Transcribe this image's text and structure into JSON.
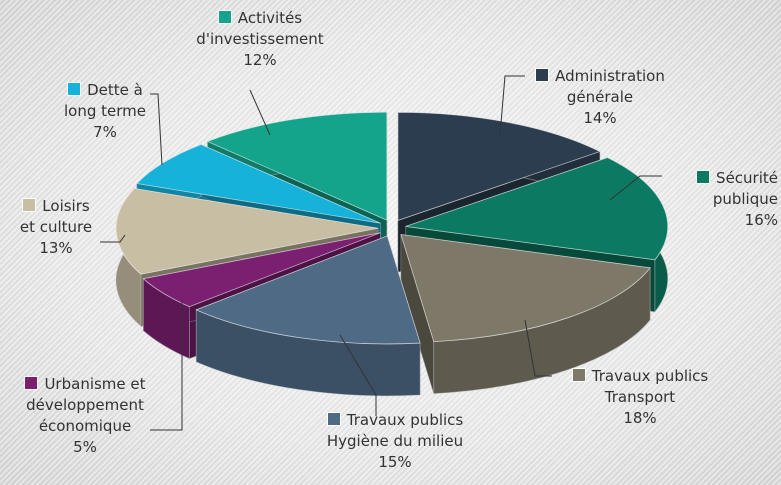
{
  "chart_data": {
    "type": "pie",
    "categories": [
      "Administration\ngénérale",
      "Sécurité\npublique",
      "Travaux publics\nTransport",
      "Travaux publics\nHygiène du milieu",
      "Urbanisme et\ndéveloppement\néconomique",
      "Loisirs\net culture",
      "Dette à\nlong terme",
      "Activités\nd'investissement"
    ],
    "values": [
      14,
      16,
      18,
      15,
      5,
      13,
      7,
      12
    ],
    "value_labels": [
      "14%",
      "16%",
      "18%",
      "15%",
      "5%",
      "13%",
      "7%",
      "12%"
    ],
    "colors": [
      "#2c3d4f",
      "#0c7a62",
      "#7d7868",
      "#4f6a85",
      "#7b1f70",
      "#c8bea3",
      "#17b2d9",
      "#14a48b"
    ]
  }
}
